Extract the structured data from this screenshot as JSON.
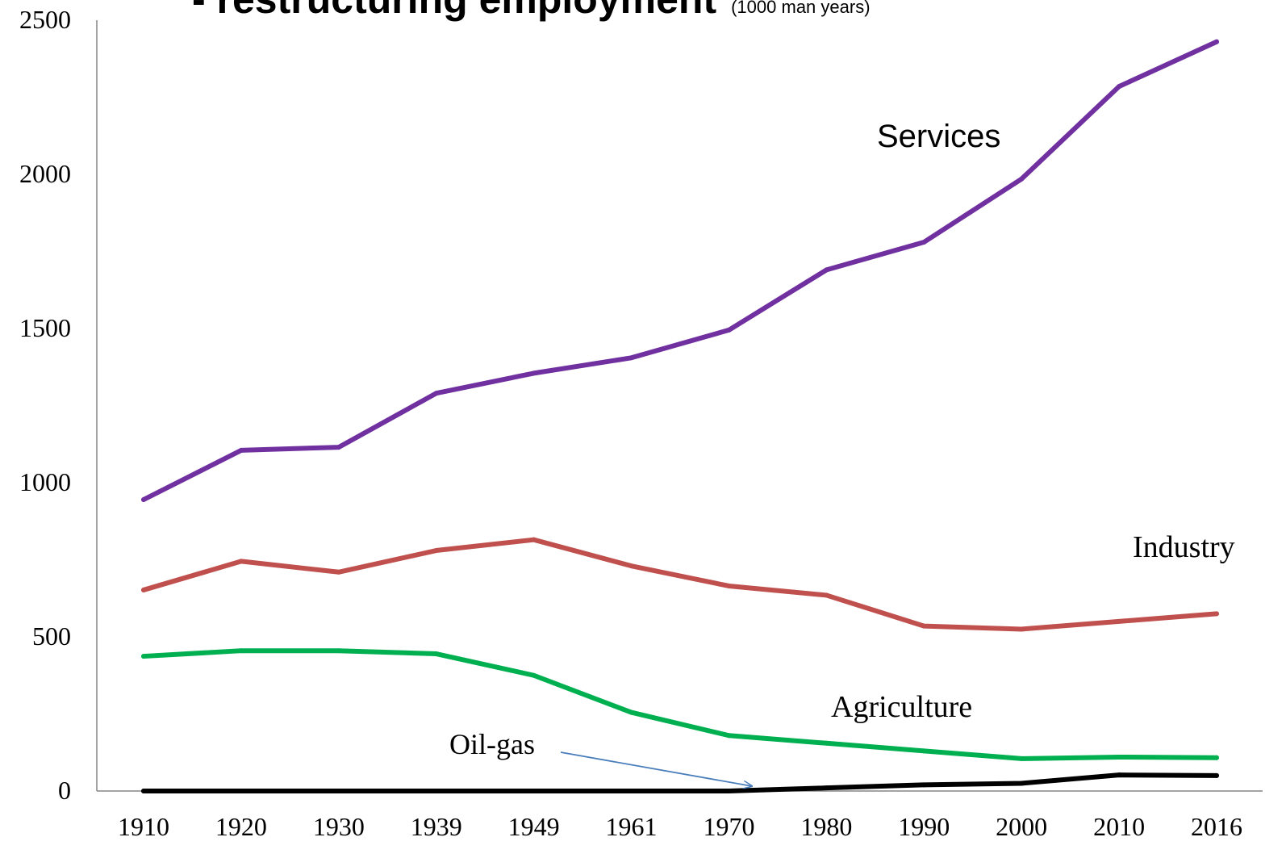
{
  "chart_data": {
    "type": "line",
    "title": "- restructuring employment",
    "subtitle": "(1000 man years)",
    "xlabel": "",
    "ylabel": "",
    "categories": [
      "1910",
      "1920",
      "1930",
      "1939",
      "1949",
      "1961",
      "1970",
      "1980",
      "1990",
      "2000",
      "2010",
      "2016"
    ],
    "ylim": [
      0,
      2500
    ],
    "yticks": [
      0,
      500,
      1000,
      1500,
      2000,
      2500
    ],
    "grid": false,
    "legend": "none",
    "series": [
      {
        "name": "Services",
        "color": "#7030A0",
        "values": [
          945,
          1105,
          1115,
          1290,
          1355,
          1405,
          1495,
          1690,
          1780,
          1985,
          2285,
          2430
        ]
      },
      {
        "name": "Industry",
        "color": "#C0504D",
        "values": [
          652,
          745,
          710,
          780,
          815,
          730,
          665,
          635,
          535,
          525,
          550,
          575
        ]
      },
      {
        "name": "Agriculture",
        "color": "#00B050",
        "values": [
          437,
          455,
          455,
          445,
          375,
          255,
          180,
          155,
          130,
          105,
          110,
          108
        ]
      },
      {
        "name": "Oil-gas",
        "color": "#000000",
        "values": [
          0,
          0,
          0,
          0,
          0,
          0,
          0,
          10,
          20,
          25,
          52,
          50
        ]
      }
    ],
    "annotations": [
      {
        "text": "Services",
        "series": "Services"
      },
      {
        "text": "Industry",
        "series": "Industry"
      },
      {
        "text": "Agriculture",
        "series": "Agriculture"
      },
      {
        "text": "Oil-gas",
        "series": "Oil-gas",
        "arrow": true
      }
    ]
  }
}
